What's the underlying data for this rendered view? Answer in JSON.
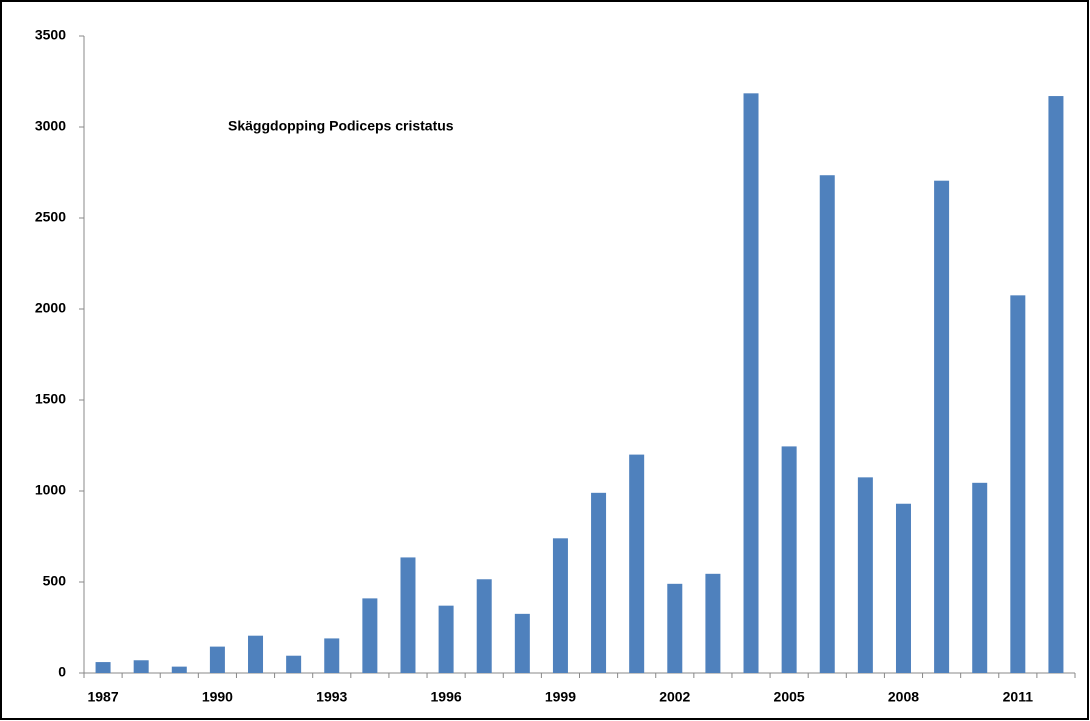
{
  "chart_data": {
    "type": "bar",
    "title": "Skäggdopping Podiceps cristatus",
    "categories": [
      "1987",
      null,
      null,
      "1990",
      null,
      null,
      "1993",
      null,
      null,
      "1996",
      null,
      null,
      "1999",
      null,
      null,
      "2002",
      null,
      null,
      "2005",
      null,
      null,
      "2008",
      null,
      null,
      "2011",
      null
    ],
    "values": [
      60,
      70,
      35,
      145,
      205,
      95,
      190,
      410,
      635,
      370,
      515,
      325,
      740,
      990,
      1200,
      490,
      545,
      3185,
      1245,
      2735,
      1075,
      930,
      2705,
      1045,
      2075,
      3170
    ],
    "color": "#4f81bd",
    "ylim": [
      0,
      3500
    ],
    "yticks": [
      0,
      500,
      1000,
      1500,
      2000,
      2500,
      3000,
      3500
    ],
    "grid": false
  }
}
